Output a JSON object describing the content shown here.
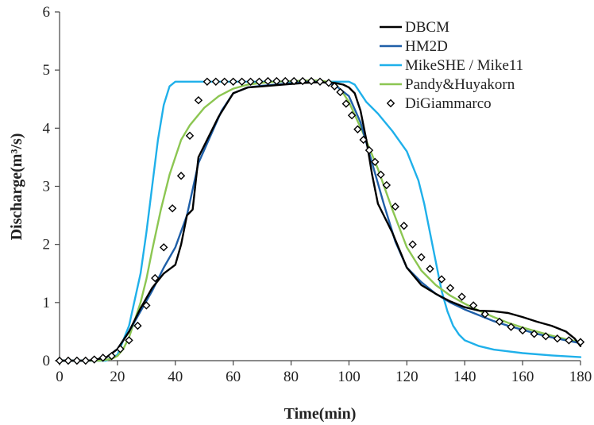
{
  "chart_data": {
    "type": "line",
    "xlabel": "Time(min)",
    "ylabel": "Discharge(m³/s)",
    "xlim": [
      0,
      180
    ],
    "ylim": [
      0,
      6
    ],
    "xticks": [
      "0",
      "20",
      "40",
      "60",
      "80",
      "100",
      "120",
      "140",
      "160",
      "180"
    ],
    "yticks": [
      "0",
      "1",
      "2",
      "3",
      "4",
      "5",
      "6"
    ],
    "grid": false,
    "legend_position": "top-right",
    "series": [
      {
        "name": "DBCM",
        "kind": "line",
        "color": "#000000",
        "x": [
          0,
          10,
          16,
          20,
          24,
          28,
          32,
          36,
          40,
          42,
          44,
          46,
          48,
          50,
          55,
          60,
          65,
          70,
          75,
          80,
          85,
          90,
          95,
          98,
          100,
          102,
          104,
          106,
          108,
          110,
          115,
          120,
          125,
          130,
          135,
          140,
          145,
          150,
          155,
          160,
          165,
          170,
          175,
          178,
          180
        ],
        "y": [
          0,
          0,
          0.05,
          0.2,
          0.5,
          0.9,
          1.25,
          1.5,
          1.65,
          2.0,
          2.5,
          2.6,
          3.5,
          3.7,
          4.2,
          4.6,
          4.7,
          4.72,
          4.74,
          4.76,
          4.78,
          4.79,
          4.78,
          4.75,
          4.7,
          4.6,
          4.3,
          3.8,
          3.2,
          2.7,
          2.2,
          1.6,
          1.3,
          1.15,
          1.02,
          0.92,
          0.86,
          0.85,
          0.82,
          0.75,
          0.67,
          0.6,
          0.5,
          0.38,
          0.25
        ]
      },
      {
        "name": "HM2D",
        "kind": "line",
        "color": "#1f5fa8",
        "x": [
          0,
          10,
          16,
          20,
          24,
          28,
          32,
          36,
          40,
          44,
          48,
          52,
          56,
          60,
          65,
          70,
          75,
          80,
          85,
          90,
          95,
          100,
          104,
          108,
          112,
          116,
          120,
          125,
          130,
          135,
          140,
          145,
          150,
          155,
          160,
          165,
          170,
          175,
          180
        ],
        "y": [
          0,
          0,
          0.05,
          0.2,
          0.5,
          0.85,
          1.2,
          1.6,
          1.95,
          2.5,
          3.4,
          3.85,
          4.3,
          4.6,
          4.7,
          4.73,
          4.75,
          4.77,
          4.79,
          4.8,
          4.75,
          4.55,
          4.1,
          3.4,
          2.7,
          2.05,
          1.6,
          1.35,
          1.15,
          1.0,
          0.88,
          0.78,
          0.68,
          0.6,
          0.53,
          0.46,
          0.4,
          0.35,
          0.3
        ]
      },
      {
        "name": "MikeSHE / Mike11",
        "kind": "line",
        "color": "#1fb0ea",
        "x": [
          0,
          16,
          20,
          24,
          28,
          30,
          32,
          34,
          36,
          38,
          40,
          42,
          45,
          50,
          60,
          70,
          80,
          90,
          98,
          100,
          102,
          104,
          106,
          110,
          115,
          120,
          124,
          126,
          128,
          130,
          132,
          134,
          136,
          138,
          140,
          145,
          150,
          160,
          170,
          180
        ],
        "y": [
          0,
          0,
          0.1,
          0.6,
          1.5,
          2.2,
          3.0,
          3.8,
          4.4,
          4.72,
          4.8,
          4.8,
          4.8,
          4.8,
          4.8,
          4.8,
          4.8,
          4.8,
          4.8,
          4.8,
          4.75,
          4.6,
          4.45,
          4.25,
          3.95,
          3.6,
          3.1,
          2.7,
          2.2,
          1.7,
          1.2,
          0.85,
          0.6,
          0.45,
          0.35,
          0.25,
          0.19,
          0.13,
          0.09,
          0.06
        ]
      },
      {
        "name": "Pandy&Huyakorn",
        "kind": "line",
        "color": "#8cc652",
        "x": [
          0,
          14,
          18,
          20,
          22,
          24,
          26,
          28,
          30,
          32,
          35,
          38,
          40,
          42,
          45,
          50,
          55,
          60,
          65,
          70,
          75,
          80,
          85,
          90,
          95,
          98,
          100,
          105,
          110,
          115,
          120,
          125,
          130,
          135,
          140,
          145,
          150,
          155,
          160,
          165,
          170,
          175,
          180
        ],
        "y": [
          0,
          0,
          0.03,
          0.08,
          0.2,
          0.4,
          0.7,
          1.0,
          1.4,
          1.9,
          2.6,
          3.2,
          3.5,
          3.8,
          4.05,
          4.35,
          4.55,
          4.68,
          4.75,
          4.78,
          4.8,
          4.81,
          4.82,
          4.82,
          4.78,
          4.6,
          4.45,
          3.9,
          3.3,
          2.6,
          1.95,
          1.55,
          1.3,
          1.12,
          0.98,
          0.86,
          0.75,
          0.65,
          0.57,
          0.5,
          0.43,
          0.37,
          0.32
        ]
      },
      {
        "name": "DiGiammarco",
        "kind": "scatter",
        "color": "#000000",
        "x": [
          0,
          3,
          6,
          9,
          12,
          15,
          18,
          21,
          24,
          27,
          30,
          33,
          36,
          39,
          42,
          45,
          48,
          51,
          54,
          57,
          60,
          63,
          66,
          69,
          72,
          75,
          78,
          81,
          84,
          87,
          90,
          93,
          95,
          97,
          99,
          101,
          103,
          105,
          107,
          109,
          111,
          113,
          116,
          119,
          122,
          125,
          128,
          132,
          135,
          139,
          143,
          147,
          152,
          156,
          160,
          164,
          168,
          172,
          176,
          180
        ],
        "y": [
          0,
          0,
          0,
          0,
          0.02,
          0.05,
          0.08,
          0.2,
          0.35,
          0.6,
          0.95,
          1.42,
          1.95,
          2.62,
          3.18,
          3.87,
          4.48,
          4.8,
          4.8,
          4.8,
          4.8,
          4.8,
          4.8,
          4.8,
          4.81,
          4.81,
          4.81,
          4.81,
          4.81,
          4.81,
          4.8,
          4.78,
          4.72,
          4.62,
          4.42,
          4.22,
          3.98,
          3.8,
          3.62,
          3.42,
          3.2,
          3.02,
          2.65,
          2.32,
          2.0,
          1.78,
          1.58,
          1.4,
          1.25,
          1.1,
          0.95,
          0.8,
          0.67,
          0.58,
          0.52,
          0.46,
          0.42,
          0.38,
          0.35,
          0.32
        ]
      }
    ]
  }
}
